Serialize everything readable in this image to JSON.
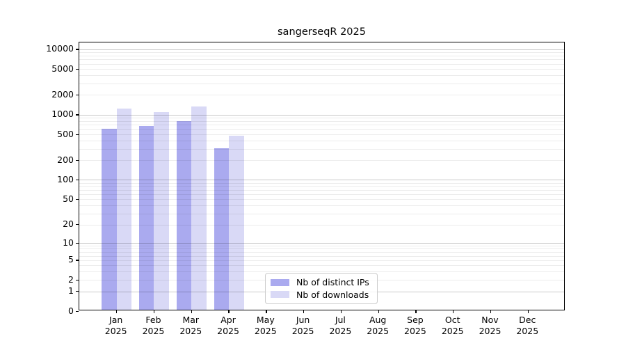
{
  "title": "sangerseqR 2025",
  "legend": {
    "items": [
      {
        "label": "Nb of distinct IPs",
        "color": "#aaaaef"
      },
      {
        "label": "Nb of downloads",
        "color": "#d9d9f6"
      }
    ]
  },
  "chart_data": {
    "type": "bar",
    "title": "sangerseqR 2025",
    "yscale": "log1p",
    "categories": [
      "Jan 2025",
      "Feb 2025",
      "Mar 2025",
      "Apr 2025",
      "May 2025",
      "Jun 2025",
      "Jul 2025",
      "Aug 2025",
      "Sep 2025",
      "Oct 2025",
      "Nov 2025",
      "Dec 2025"
    ],
    "series": [
      {
        "name": "Nb of distinct IPs",
        "color": "#aaaaef",
        "values": [
          605,
          672,
          790,
          305,
          null,
          null,
          null,
          null,
          null,
          null,
          null,
          null
        ]
      },
      {
        "name": "Nb of downloads",
        "color": "#d9d9f6",
        "values": [
          1240,
          1100,
          1350,
          475,
          null,
          null,
          null,
          null,
          null,
          null,
          null,
          null
        ]
      }
    ],
    "y_ticks": [
      0,
      1,
      2,
      5,
      10,
      20,
      50,
      100,
      200,
      500,
      1000,
      2000,
      5000,
      10000
    ],
    "major_grid_values": [
      1,
      10,
      100,
      1000,
      10000
    ],
    "ylim": [
      0,
      12800
    ],
    "grid": "on",
    "legend_position": "lower center",
    "colors": {
      "spine": "#000000",
      "major_grid": "#c9c9c9",
      "minor_grid": "#ececec"
    }
  }
}
